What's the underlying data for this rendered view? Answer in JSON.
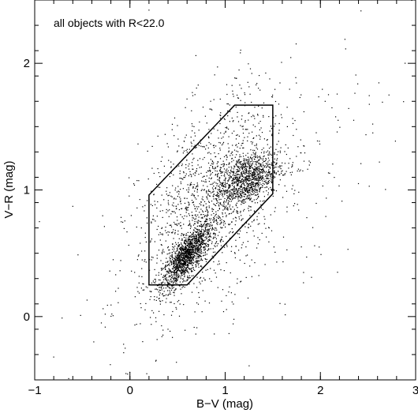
{
  "chart_data": {
    "type": "scatter",
    "title": "",
    "annotation": "all objects with R<22.0",
    "xlabel": "B−V (mag)",
    "ylabel": "V−R (mag)",
    "xlim": [
      -1,
      3
    ],
    "ylim": [
      -0.5,
      2.5
    ],
    "x_ticks": [
      {
        "value": -1,
        "label": "−1"
      },
      {
        "value": 0,
        "label": "0"
      },
      {
        "value": 1,
        "label": "1"
      },
      {
        "value": 2,
        "label": "2"
      },
      {
        "value": 3,
        "label": "3"
      }
    ],
    "y_ticks": [
      {
        "value": 0,
        "label": "0"
      },
      {
        "value": 1,
        "label": "1"
      },
      {
        "value": 2,
        "label": "2"
      }
    ],
    "x_minor_step": 0.2,
    "y_minor_step": 0.2,
    "grid": false,
    "selection_polygon": [
      [
        0.2,
        0.25
      ],
      [
        0.6,
        0.25
      ],
      [
        1.5,
        0.97
      ],
      [
        1.5,
        1.67
      ],
      [
        1.1,
        1.67
      ],
      [
        0.2,
        0.96
      ],
      [
        0.2,
        0.25
      ]
    ],
    "point_distribution": {
      "total_points": 4000,
      "clumps": [
        {
          "center": [
            0.6,
            0.48
          ],
          "spread": [
            0.13,
            0.08
          ],
          "tilt": 0.8,
          "weight": 0.35
        },
        {
          "center": [
            1.22,
            1.08
          ],
          "spread": [
            0.17,
            0.1
          ],
          "tilt": 0.3,
          "weight": 0.25
        },
        {
          "center": [
            0.85,
            0.95
          ],
          "spread": [
            0.38,
            0.36
          ],
          "tilt": 0.5,
          "weight": 0.32
        },
        {
          "center": [
            1.1,
            0.85
          ],
          "spread": [
            0.75,
            0.45
          ],
          "tilt": 0.55,
          "weight": 0.08
        }
      ],
      "fixed_outliers": [
        [
          -0.95,
          0.75
        ],
        [
          -0.6,
          0.87
        ],
        [
          -0.8,
          -0.32
        ],
        [
          -0.45,
          0.13
        ],
        [
          -0.38,
          -0.2
        ],
        [
          -0.05,
          -0.25
        ],
        [
          0.2,
          2.42
        ],
        [
          1.28,
          1.92
        ],
        [
          2.72,
          1.75
        ],
        [
          2.55,
          1.45
        ],
        [
          2.35,
          1.55
        ],
        [
          2.05,
          1.7
        ],
        [
          2.62,
          1.22
        ],
        [
          2.18,
          0.35
        ],
        [
          0.08,
          0.45
        ],
        [
          -0.15,
          0.2
        ],
        [
          -0.3,
          -0.05
        ],
        [
          0.4,
          -0.1
        ],
        [
          1.8,
          0.55
        ],
        [
          2.4,
          1.05
        ]
      ]
    }
  }
}
